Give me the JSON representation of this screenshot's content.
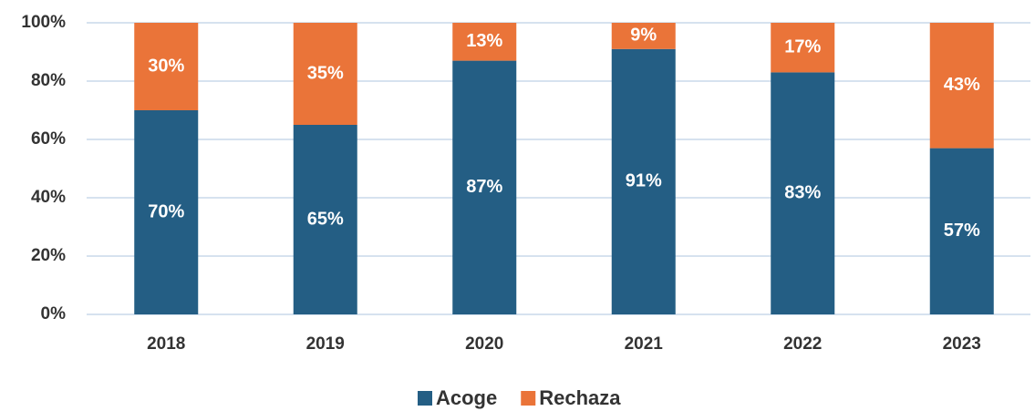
{
  "chart_data": {
    "type": "stacked_bar",
    "categories": [
      "2018",
      "2019",
      "2020",
      "2021",
      "2022",
      "2023"
    ],
    "series": [
      {
        "name": "Acoge",
        "color": "#245e84",
        "values": [
          70,
          65,
          87,
          91,
          83,
          57
        ],
        "value_labels": [
          "70%",
          "65%",
          "87%",
          "91%",
          "83%",
          "57%"
        ]
      },
      {
        "name": "Rechaza",
        "color": "#ea7439",
        "values": [
          30,
          35,
          13,
          9,
          17,
          43
        ],
        "value_labels": [
          "30%",
          "35%",
          "13%",
          "9%",
          "17%",
          "43%"
        ]
      }
    ],
    "ylim": [
      0,
      100
    ],
    "yticks": [
      {
        "value": 0,
        "label": "0%"
      },
      {
        "value": 20,
        "label": "20%"
      },
      {
        "value": 40,
        "label": "40%"
      },
      {
        "value": 60,
        "label": "60%"
      },
      {
        "value": 80,
        "label": "80%"
      },
      {
        "value": 100,
        "label": "100%"
      }
    ],
    "grid": true,
    "legend": "bottom"
  }
}
